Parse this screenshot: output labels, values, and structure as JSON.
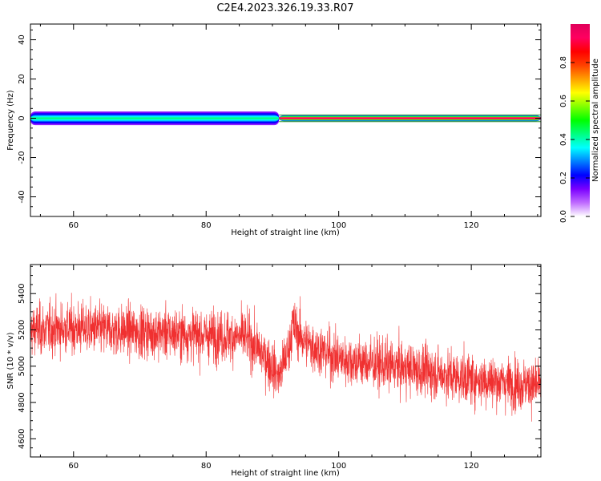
{
  "title": "C2E4.2023.326.19.33.R07",
  "chart_data": [
    {
      "type": "heatmap",
      "xlabel": "Height of straight line (km)",
      "ylabel": "Frequency (Hz)",
      "xlim": [
        53.5,
        130.5
      ],
      "ylim": [
        -50,
        48
      ],
      "xticks": [
        60,
        80,
        100,
        120
      ],
      "yticks": [
        -40,
        -20,
        0,
        20,
        40
      ],
      "description_series": [
        {
          "name": "",
          "x_range": [
            53.5,
            91
          ],
          "freq_halfwidth_hz": 3.5,
          "center_amplitude": 0.4
        },
        {
          "name": "",
          "x_range": [
            91,
            130.5
          ],
          "freq_halfwidth_hz": 1.5,
          "center_amplitude": 0.95
        }
      ],
      "colorbar": {
        "label": "Normalized spectral amplitude",
        "ticks": [
          0.0,
          0.2,
          0.4,
          0.6,
          0.8
        ],
        "range": [
          0,
          1
        ],
        "colors": [
          "#ffffff",
          "#c06bff",
          "#7a00ff",
          "#0000ff",
          "#0080ff",
          "#00ffff",
          "#00ff80",
          "#00ff00",
          "#80ff00",
          "#ffff00",
          "#ffa000",
          "#ff4000",
          "#ff0000",
          "#ff0060",
          "#e0005a"
        ]
      }
    },
    {
      "type": "line",
      "xlabel": "Height of straight line (km)",
      "ylabel": "SNR (10 * v/v)",
      "xlim": [
        53.5,
        130.5
      ],
      "ylim": [
        4500,
        5560
      ],
      "xticks": [
        60,
        80,
        100,
        120
      ],
      "yticks": [
        4600,
        4800,
        5000,
        5200,
        5400
      ],
      "series": [
        {
          "name": "",
          "color": "#f03030",
          "trend_x": [
            53.5,
            60,
            70,
            80,
            86,
            89,
            91,
            92.5,
            93,
            95,
            100,
            110,
            120,
            130.5
          ],
          "trend_y": [
            5200,
            5210,
            5190,
            5170,
            5160,
            5050,
            4940,
            5100,
            5230,
            5130,
            5040,
            4990,
            4930,
            4890
          ],
          "noise_amplitude": 100,
          "n_points": 3000
        }
      ]
    }
  ]
}
